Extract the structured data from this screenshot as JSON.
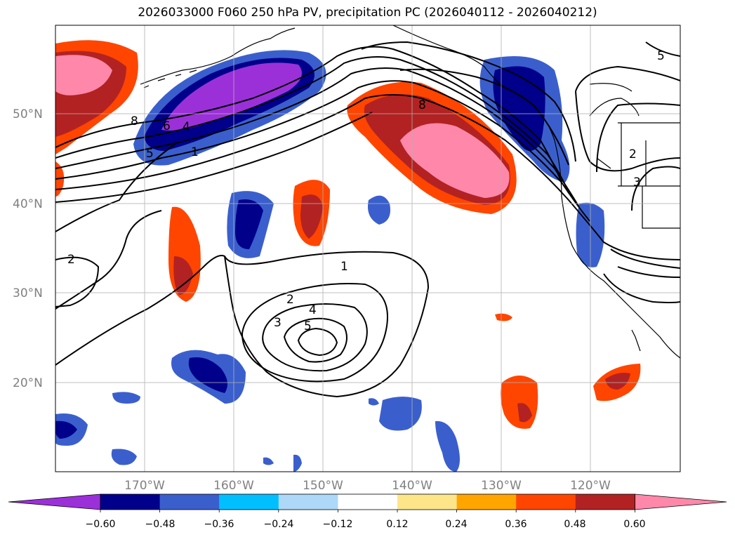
{
  "title": "2026033000 F060 250 hPa PV, precipitation PC (2026040112 - 2026040212)",
  "map": {
    "lat_ticks": [
      "50°N",
      "40°N",
      "30°N",
      "20°N"
    ],
    "lon_ticks": [
      "170°W",
      "160°W",
      "150°W",
      "140°W",
      "130°W",
      "120°W"
    ],
    "contour_labels": [
      "8",
      "6",
      "4",
      "5",
      "1",
      "2",
      "1",
      "2",
      "3",
      "4",
      "5",
      "8",
      "5",
      "2",
      "3"
    ]
  },
  "colorbar": {
    "ticks": [
      "−0.60",
      "−0.48",
      "−0.36",
      "−0.24",
      "−0.12",
      "0.12",
      "0.24",
      "0.36",
      "0.48",
      "0.60"
    ],
    "colors": [
      "#9b30d9",
      "#00008b",
      "#3a5fcd",
      "#00bfff",
      "#add8f7",
      "#ffffff",
      "#fde68a",
      "#ffa500",
      "#ff4500",
      "#b22222",
      "#ff88aa"
    ]
  }
}
